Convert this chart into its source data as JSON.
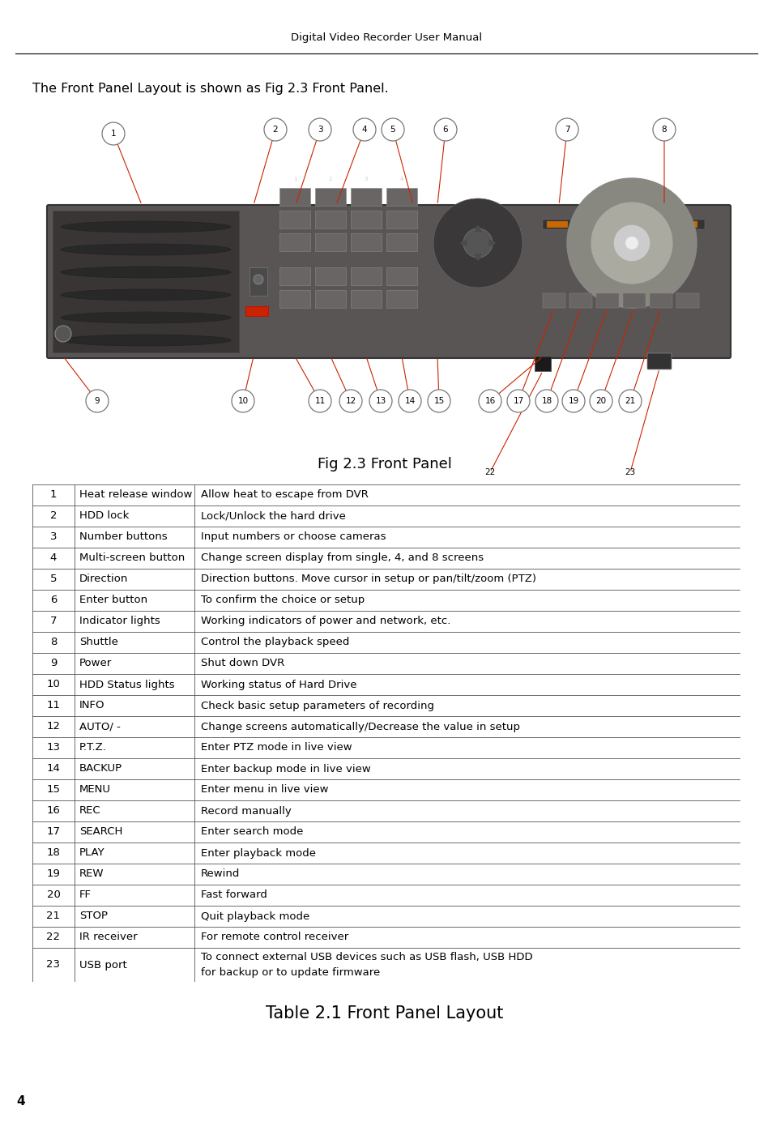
{
  "page_title": "Digital Video Recorder User Manual",
  "intro_text": "The Front Panel Layout is shown as Fig 2.3 Front Panel.",
  "fig_caption": "Fig 2.3 Front Panel",
  "table_caption": "Table 2.1 Front Panel Layout",
  "page_number": "4",
  "table_data": [
    [
      "1",
      "Heat release window",
      "Allow heat to escape from DVR"
    ],
    [
      "2",
      "HDD lock",
      "Lock/Unlock the hard drive"
    ],
    [
      "3",
      "Number buttons",
      "Input numbers or choose cameras"
    ],
    [
      "4",
      "Multi-screen button",
      "Change screen display from single, 4, and 8 screens"
    ],
    [
      "5",
      "Direction",
      "Direction buttons. Move cursor in setup or pan/tilt/zoom (PTZ)"
    ],
    [
      "6",
      "Enter button",
      "To confirm the choice or setup"
    ],
    [
      "7",
      "Indicator lights",
      "Working indicators of power and network, etc."
    ],
    [
      "8",
      "Shuttle",
      "Control the playback speed"
    ],
    [
      "9",
      "Power",
      "Shut down DVR"
    ],
    [
      "10",
      "HDD Status lights",
      "Working status of Hard Drive"
    ],
    [
      "11",
      "INFO",
      "Check basic setup parameters of recording"
    ],
    [
      "12",
      "AUTO/ -",
      "Change screens automatically/Decrease the value in setup"
    ],
    [
      "13",
      "P.T.Z.",
      "Enter PTZ mode in live view"
    ],
    [
      "14",
      "BACKUP",
      "Enter backup mode in live view"
    ],
    [
      "15",
      "MENU",
      "Enter menu in live view"
    ],
    [
      "16",
      "REC",
      "Record manually"
    ],
    [
      "17",
      "SEARCH",
      "Enter search mode"
    ],
    [
      "18",
      "PLAY",
      "Enter playback mode"
    ],
    [
      "19",
      "REW",
      "Rewind"
    ],
    [
      "20",
      "FF",
      "Fast forward"
    ],
    [
      "21",
      "STOP",
      "Quit playback mode"
    ],
    [
      "22",
      "IR receiver",
      "For remote control receiver"
    ],
    [
      "23",
      "USB port",
      "To connect external USB devices such as USB flash, USB HDD\nfor backup or to update firmware"
    ]
  ],
  "bg_color": "#ffffff",
  "text_color": "#000000",
  "table_border_color": "#555555",
  "title_fontsize": 9.5,
  "intro_fontsize": 11.5,
  "table_fontsize": 9.5,
  "caption_fontsize": 13,
  "table_caption_fontsize": 15,
  "dvr_color": "#5a5555",
  "dvr_dark": "#3a3535",
  "dvr_edge": "#333333",
  "btn_color": "#6a6565",
  "btn_edge": "#888888",
  "callout_line_color": "#cc2200"
}
